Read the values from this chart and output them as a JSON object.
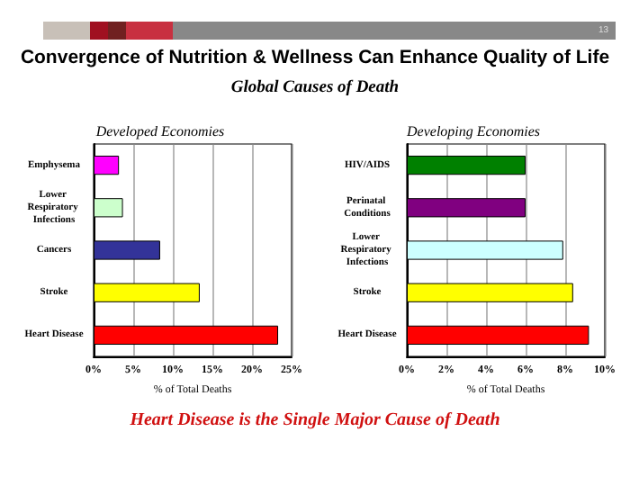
{
  "chart_data": [
    {
      "type": "bar",
      "orientation": "horizontal",
      "title": "Developed Economies",
      "xlabel": "% of Total Deaths",
      "categories": [
        "Emphysema",
        "Lower Respiratory Infections",
        "Cancers",
        "Stroke",
        "Heart Disease"
      ],
      "values": [
        3.2,
        3.7,
        8.4,
        13.4,
        23.3
      ],
      "colors": [
        "#ff00ff",
        "#ccffcc",
        "#333399",
        "#ffff00",
        "#ff0000"
      ],
      "xlim": [
        0,
        25
      ],
      "xticks": [
        {
          "value": 0,
          "label": "0%"
        },
        {
          "value": 5,
          "label": "5%"
        },
        {
          "value": 10,
          "label": "10%"
        },
        {
          "value": 15,
          "label": "15%"
        },
        {
          "value": 20,
          "label": "20%"
        },
        {
          "value": 25,
          "label": "25%"
        }
      ],
      "grid": "x",
      "annotations": [
        "13",
        "Convergence of Nutrition & Wellness Can Enhance Quality of Life",
        "Global Causes of Death",
        "Heart Disease is the Single Major Cause of Death"
      ]
    },
    {
      "type": "bar",
      "orientation": "horizontal",
      "title": "Developing Economies",
      "xlabel": "% of Total Deaths",
      "categories": [
        "HIV/AIDS",
        "Perinatal Conditions",
        "Lower Respiratory Infections",
        "Stroke",
        "Heart Disease"
      ],
      "values": [
        6.0,
        6.0,
        7.9,
        8.4,
        9.2
      ],
      "colors": [
        "#008000",
        "#800080",
        "#ccffff",
        "#ffff00",
        "#ff0000"
      ],
      "xlim": [
        0,
        10
      ],
      "xticks": [
        {
          "value": 0,
          "label": "0%"
        },
        {
          "value": 2,
          "label": "2%"
        },
        {
          "value": 4,
          "label": "4%"
        },
        {
          "value": 6,
          "label": "6%"
        },
        {
          "value": 8,
          "label": "8%"
        },
        {
          "value": 10,
          "label": "10%"
        }
      ],
      "grid": "x"
    }
  ]
}
